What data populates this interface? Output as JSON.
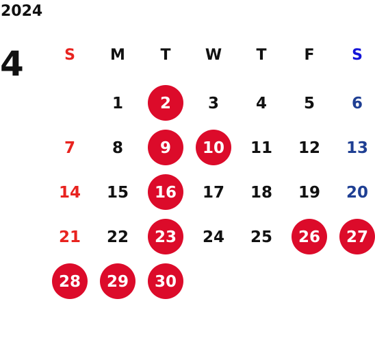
{
  "calendar": {
    "year": "2024",
    "month": "4",
    "weekdays": [
      "S",
      "M",
      "T",
      "W",
      "T",
      "F",
      "S"
    ],
    "weeks": [
      [
        "",
        "1",
        "2",
        "3",
        "4",
        "5",
        "6"
      ],
      [
        "7",
        "8",
        "9",
        "10",
        "11",
        "12",
        "13"
      ],
      [
        "14",
        "15",
        "16",
        "17",
        "18",
        "19",
        "20"
      ],
      [
        "21",
        "22",
        "23",
        "24",
        "25",
        "26",
        "27"
      ],
      [
        "28",
        "29",
        "30",
        "",
        "",
        "",
        ""
      ]
    ],
    "highlighted_days": [
      "2",
      "9",
      "10",
      "16",
      "23",
      "26",
      "27",
      "28",
      "29",
      "30"
    ],
    "colors": {
      "highlight": "#dc0b2a",
      "sunday": "#e8231f",
      "saturday": "#1f3f93",
      "saturday_header": "#1515d8",
      "text": "#111111"
    }
  }
}
